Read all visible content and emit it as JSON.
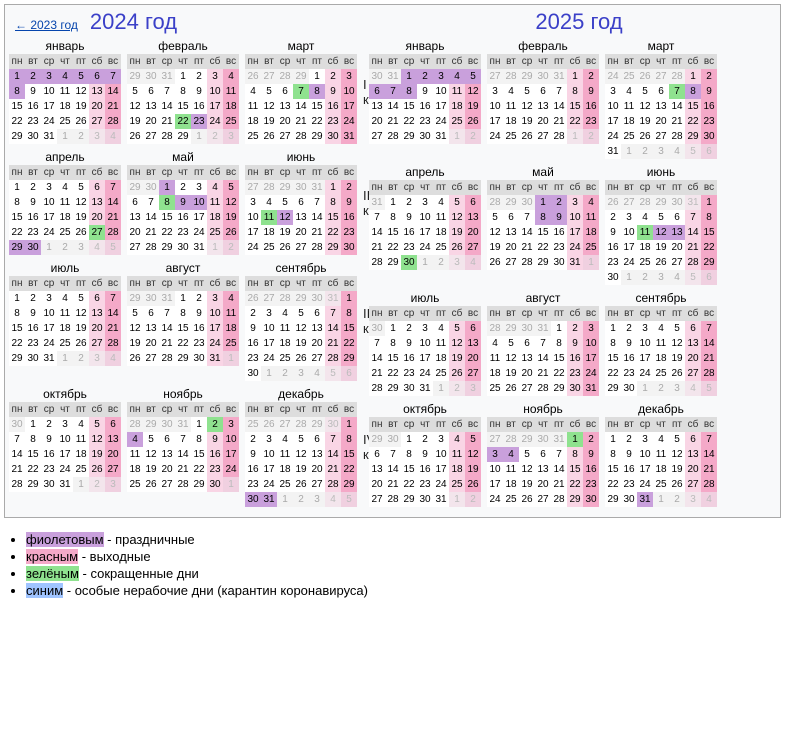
{
  "back_link": "← 2023 год",
  "year_2024": "2024 год",
  "year_2025": "2025 год",
  "quarters": [
    "I кв.",
    "II кв.",
    "III кв.",
    "IV кв."
  ],
  "dow": [
    "пн",
    "вт",
    "ср",
    "чт",
    "пт",
    "сб",
    "вс"
  ],
  "months_ru": [
    "январь",
    "февраль",
    "март",
    "апрель",
    "май",
    "июнь",
    "июль",
    "август",
    "сентябрь",
    "октябрь",
    "ноябрь",
    "декабрь"
  ],
  "legend": {
    "violet": {
      "word": "фиолетовым",
      "text": " - праздничные"
    },
    "red": {
      "word": "красным",
      "text": " - выходные"
    },
    "green": {
      "word": "зелёным",
      "text": " - сокращенные дни"
    },
    "blue": {
      "word": "синим",
      "text": " - особые нерабочие дни (карантин коронавируса)"
    }
  },
  "colors": {
    "weekend_light": "#f9d5e5",
    "weekend_dark": "#f4a9c8",
    "holiday": "#c9a0dc",
    "short": "#8fe28f",
    "blue": "#a0c4ff",
    "header_bg": "#dddddd",
    "year_text": "#3b40c8",
    "link": "#0645ad"
  },
  "years": {
    "2024": {
      "firstDow": [
        0,
        3,
        4,
        0,
        2,
        5,
        0,
        3,
        6,
        1,
        4,
        6
      ],
      "len": [
        31,
        29,
        31,
        30,
        31,
        30,
        31,
        31,
        30,
        31,
        30,
        31
      ],
      "special": {
        "0": {
          "hol": [
            1,
            2,
            3,
            4,
            5,
            6,
            7,
            8
          ]
        },
        "1": {
          "sh": [
            22
          ],
          "hol": [
            23
          ]
        },
        "2": {
          "sh": [
            7
          ],
          "hol": [
            8
          ]
        },
        "3": {
          "sh": [
            27
          ],
          "hol": [
            29,
            30
          ]
        },
        "4": {
          "hol": [
            1,
            9,
            10
          ],
          "sh": [
            8
          ]
        },
        "5": {
          "sh": [
            11
          ],
          "hol": [
            12
          ]
        },
        "8": {},
        "10": {
          "hol": [
            4
          ],
          "sh": [
            2
          ]
        },
        "11": {
          "hol": [
            30,
            31
          ]
        }
      }
    },
    "2025": {
      "firstDow": [
        2,
        5,
        5,
        1,
        3,
        6,
        1,
        4,
        0,
        2,
        5,
        0
      ],
      "len": [
        31,
        28,
        31,
        30,
        31,
        30,
        31,
        31,
        30,
        31,
        30,
        31
      ],
      "special": {
        "0": {
          "hol": [
            1,
            2,
            3,
            4,
            5,
            6,
            7,
            8
          ]
        },
        "1": {},
        "2": {
          "sh": [
            7
          ],
          "hol": [
            8
          ]
        },
        "3": {
          "sh": [
            30
          ]
        },
        "4": {
          "hol": [
            1,
            2,
            8,
            9
          ]
        },
        "5": {
          "sh": [
            11
          ],
          "hol": [
            12,
            13
          ]
        },
        "10": {
          "hol": [
            3,
            4
          ],
          "sh": [
            1
          ]
        },
        "11": {
          "hol": [
            31
          ]
        }
      }
    }
  }
}
